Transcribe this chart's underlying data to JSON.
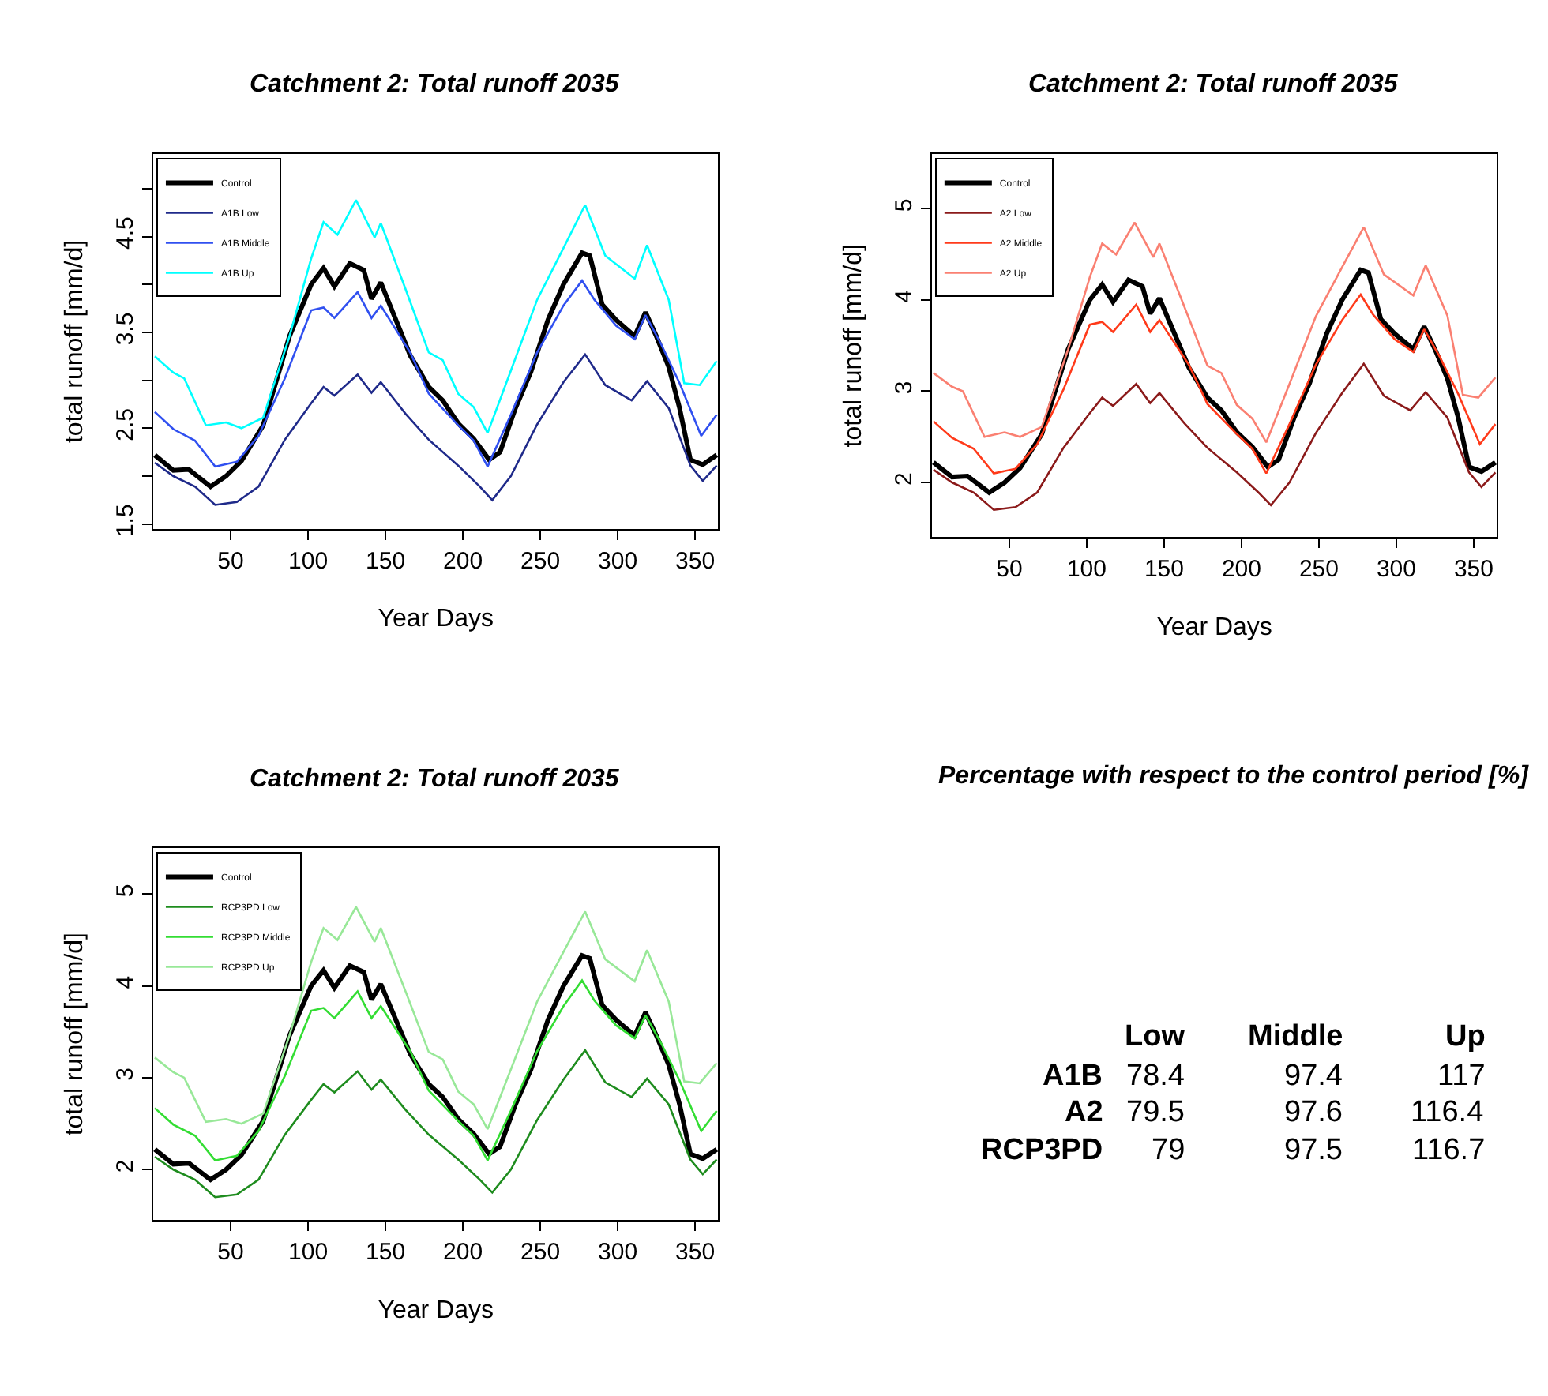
{
  "chart_data": [
    {
      "type": "line",
      "title": "Catchment 2: Total runoff 2035",
      "xlabel": "Year Days",
      "ylabel": "total runoff [mm/d]",
      "xlim": [
        0,
        365
      ],
      "xticks": [
        50,
        100,
        150,
        200,
        250,
        300,
        350
      ],
      "ylim": [
        1.45,
        5.36
      ],
      "yticks": [
        1.5,
        {
          "value": 2,
          "label": null
        },
        2.5,
        {
          "value": 3,
          "label": null
        },
        3.5,
        {
          "value": 4,
          "label": null
        },
        4.5,
        {
          "value": 5,
          "label": null
        }
      ],
      "legend": "top left",
      "series": [
        {
          "name": "Control",
          "color": "#000000",
          "x": [
            1,
            13,
            23,
            37,
            47,
            57,
            71,
            88,
            102,
            110,
            117,
            127,
            136,
            141,
            147,
            154,
            166,
            178,
            187,
            197,
            207,
            217,
            224,
            234,
            244,
            255,
            265,
            277,
            282,
            290,
            299,
            311,
            318,
            325,
            333,
            340,
            347,
            355,
            364
          ],
          "values": [
            2.22,
            2.06,
            2.07,
            1.89,
            2.0,
            2.16,
            2.53,
            3.46,
            4.0,
            4.17,
            3.98,
            4.22,
            4.15,
            3.85,
            4.02,
            3.74,
            3.26,
            2.93,
            2.79,
            2.55,
            2.39,
            2.17,
            2.25,
            2.71,
            3.09,
            3.63,
            4.0,
            4.33,
            4.3,
            3.79,
            3.63,
            3.46,
            3.71,
            3.46,
            3.14,
            2.71,
            2.17,
            2.12,
            2.22
          ]
        },
        {
          "name": "A1B Low",
          "color": "#1f2a8a",
          "x": [
            1,
            13,
            27,
            40,
            54,
            68,
            85,
            102,
            110,
            117,
            132,
            141,
            147,
            163,
            178,
            197,
            211,
            219,
            231,
            248,
            265,
            279,
            292,
            309,
            319,
            333,
            347,
            355,
            364
          ],
          "values": [
            2.14,
            2.0,
            1.89,
            1.7,
            1.73,
            1.89,
            2.38,
            2.76,
            2.93,
            2.84,
            3.06,
            2.87,
            2.98,
            2.65,
            2.38,
            2.11,
            1.89,
            1.75,
            2.0,
            2.54,
            2.98,
            3.27,
            2.95,
            2.79,
            2.99,
            2.71,
            2.11,
            1.95,
            2.11
          ]
        },
        {
          "name": "A1B Middle",
          "color": "#3050f0",
          "x": [
            1,
            13,
            27,
            40,
            54,
            68,
            85,
            102,
            110,
            117,
            132,
            141,
            147,
            166,
            178,
            197,
            207,
            216,
            231,
            248,
            265,
            277,
            285,
            299,
            311,
            318,
            328,
            340,
            354,
            364
          ],
          "values": [
            2.67,
            2.49,
            2.37,
            2.1,
            2.15,
            2.42,
            3.02,
            3.73,
            3.76,
            3.65,
            3.92,
            3.65,
            3.78,
            3.29,
            2.86,
            2.53,
            2.37,
            2.1,
            2.64,
            3.29,
            3.78,
            4.04,
            3.84,
            3.57,
            3.43,
            3.68,
            3.38,
            2.97,
            2.42,
            2.64
          ]
        },
        {
          "name": "A1B Up",
          "color": "#00ffff",
          "x": [
            1,
            13,
            20,
            34,
            47,
            57,
            71,
            88,
            102,
            110,
            119,
            131,
            143,
            147,
            163,
            178,
            187,
            197,
            207,
            216,
            231,
            248,
            265,
            279,
            292,
            311,
            319,
            333,
            343,
            353,
            364
          ],
          "values": [
            3.25,
            3.08,
            3.02,
            2.53,
            2.56,
            2.5,
            2.61,
            3.46,
            4.27,
            4.65,
            4.52,
            4.88,
            4.49,
            4.64,
            3.95,
            3.29,
            3.21,
            2.86,
            2.72,
            2.45,
            3.1,
            3.84,
            4.38,
            4.83,
            4.3,
            4.06,
            4.41,
            3.84,
            2.97,
            2.95,
            3.2
          ]
        }
      ]
    },
    {
      "type": "line",
      "title": "Catchment 2: Total runoff 2035",
      "xlabel": "Year Days",
      "ylabel": "total runoff [mm/d]",
      "xlim": [
        0,
        365
      ],
      "xticks": [
        50,
        100,
        150,
        200,
        250,
        300,
        350
      ],
      "ylim": [
        1.4,
        5.6
      ],
      "yticks": [
        2,
        3,
        4,
        5
      ],
      "legend": "top left",
      "series": [
        {
          "name": "Control",
          "color": "#000000",
          "x": [
            1,
            13,
            23,
            37,
            47,
            57,
            71,
            88,
            102,
            110,
            117,
            127,
            136,
            141,
            147,
            154,
            166,
            178,
            187,
            197,
            207,
            217,
            224,
            234,
            244,
            255,
            265,
            277,
            282,
            290,
            299,
            311,
            318,
            325,
            333,
            340,
            347,
            355,
            364
          ],
          "values": [
            2.22,
            2.06,
            2.07,
            1.89,
            2.0,
            2.16,
            2.53,
            3.46,
            4.0,
            4.17,
            3.98,
            4.22,
            4.15,
            3.85,
            4.02,
            3.74,
            3.26,
            2.93,
            2.79,
            2.55,
            2.39,
            2.17,
            2.25,
            2.71,
            3.09,
            3.63,
            4.0,
            4.33,
            4.3,
            3.79,
            3.63,
            3.46,
            3.71,
            3.46,
            3.14,
            2.71,
            2.17,
            2.12,
            2.22
          ]
        },
        {
          "name": "A2 Low",
          "color": "#8b1a1a",
          "x": [
            1,
            13,
            27,
            40,
            54,
            68,
            85,
            102,
            110,
            117,
            132,
            141,
            147,
            163,
            178,
            197,
            211,
            219,
            231,
            248,
            265,
            279,
            292,
            309,
            319,
            333,
            347,
            355,
            364
          ],
          "values": [
            2.14,
            2.0,
            1.89,
            1.7,
            1.73,
            1.89,
            2.38,
            2.76,
            2.93,
            2.84,
            3.08,
            2.87,
            2.98,
            2.65,
            2.38,
            2.11,
            1.89,
            1.75,
            2.0,
            2.54,
            2.98,
            3.3,
            2.95,
            2.79,
            2.99,
            2.71,
            2.11,
            1.95,
            2.11
          ]
        },
        {
          "name": "A2 Middle",
          "color": "#ff3a1a",
          "x": [
            1,
            13,
            27,
            40,
            54,
            68,
            85,
            102,
            110,
            117,
            132,
            141,
            147,
            166,
            178,
            197,
            207,
            216,
            231,
            248,
            265,
            277,
            285,
            299,
            311,
            318,
            328,
            340,
            354,
            364
          ],
          "values": [
            2.67,
            2.49,
            2.37,
            2.1,
            2.15,
            2.42,
            3.02,
            3.73,
            3.76,
            3.65,
            3.95,
            3.65,
            3.78,
            3.29,
            2.86,
            2.53,
            2.37,
            2.1,
            2.64,
            3.29,
            3.78,
            4.06,
            3.84,
            3.57,
            3.43,
            3.68,
            3.38,
            2.97,
            2.42,
            2.64
          ]
        },
        {
          "name": "A2 Up",
          "color": "#fa8072",
          "x": [
            1,
            13,
            20,
            34,
            47,
            57,
            71,
            88,
            102,
            110,
            119,
            131,
            143,
            147,
            163,
            178,
            187,
            197,
            207,
            216,
            231,
            248,
            265,
            279,
            292,
            311,
            319,
            333,
            343,
            353,
            364
          ],
          "values": [
            3.2,
            3.05,
            3.0,
            2.5,
            2.55,
            2.5,
            2.61,
            3.46,
            4.25,
            4.62,
            4.5,
            4.85,
            4.47,
            4.62,
            3.93,
            3.28,
            3.2,
            2.85,
            2.7,
            2.44,
            3.08,
            3.82,
            4.36,
            4.8,
            4.28,
            4.05,
            4.38,
            3.83,
            2.96,
            2.93,
            3.15
          ]
        }
      ]
    },
    {
      "type": "line",
      "title": "Catchment 2: Total runoff 2035",
      "xlabel": "Year Days",
      "ylabel": "total runoff [mm/d]",
      "xlim": [
        0,
        365
      ],
      "xticks": [
        50,
        100,
        150,
        200,
        250,
        300,
        350
      ],
      "ylim": [
        1.45,
        5.5
      ],
      "yticks": [
        2,
        3,
        4,
        5
      ],
      "legend": "top left",
      "series": [
        {
          "name": "Control",
          "color": "#000000",
          "x": [
            1,
            13,
            23,
            37,
            47,
            57,
            71,
            88,
            102,
            110,
            117,
            127,
            136,
            141,
            147,
            154,
            166,
            178,
            187,
            197,
            207,
            217,
            224,
            234,
            244,
            255,
            265,
            277,
            282,
            290,
            299,
            311,
            318,
            325,
            333,
            340,
            347,
            355,
            364
          ],
          "values": [
            2.22,
            2.06,
            2.07,
            1.89,
            2.0,
            2.16,
            2.53,
            3.46,
            4.0,
            4.17,
            3.98,
            4.22,
            4.15,
            3.85,
            4.02,
            3.74,
            3.26,
            2.93,
            2.79,
            2.55,
            2.39,
            2.17,
            2.25,
            2.71,
            3.09,
            3.63,
            4.0,
            4.33,
            4.3,
            3.79,
            3.63,
            3.46,
            3.71,
            3.46,
            3.14,
            2.71,
            2.17,
            2.12,
            2.22
          ]
        },
        {
          "name": "RCP3PD Low",
          "color": "#1e8c1e",
          "x": [
            1,
            13,
            27,
            40,
            54,
            68,
            85,
            102,
            110,
            117,
            132,
            141,
            147,
            163,
            178,
            197,
            211,
            219,
            231,
            248,
            265,
            279,
            292,
            309,
            319,
            333,
            347,
            355,
            364
          ],
          "values": [
            2.14,
            2.0,
            1.89,
            1.7,
            1.73,
            1.89,
            2.38,
            2.76,
            2.93,
            2.84,
            3.07,
            2.87,
            2.98,
            2.65,
            2.38,
            2.11,
            1.89,
            1.75,
            2.0,
            2.54,
            2.98,
            3.3,
            2.95,
            2.79,
            2.99,
            2.71,
            2.11,
            1.95,
            2.11
          ]
        },
        {
          "name": "RCP3PD Middle",
          "color": "#33dd33",
          "x": [
            1,
            13,
            27,
            40,
            54,
            68,
            85,
            102,
            110,
            117,
            132,
            141,
            147,
            166,
            178,
            197,
            207,
            216,
            231,
            248,
            265,
            277,
            285,
            299,
            311,
            318,
            328,
            340,
            354,
            364
          ],
          "values": [
            2.67,
            2.49,
            2.37,
            2.1,
            2.15,
            2.42,
            3.02,
            3.73,
            3.76,
            3.65,
            3.94,
            3.65,
            3.78,
            3.29,
            2.86,
            2.53,
            2.37,
            2.1,
            2.64,
            3.29,
            3.78,
            4.06,
            3.84,
            3.57,
            3.43,
            3.68,
            3.38,
            2.97,
            2.42,
            2.64
          ]
        },
        {
          "name": "RCP3PD Up",
          "color": "#98e898",
          "x": [
            1,
            13,
            20,
            34,
            47,
            57,
            71,
            88,
            102,
            110,
            119,
            131,
            143,
            147,
            163,
            178,
            187,
            197,
            207,
            216,
            231,
            248,
            265,
            279,
            292,
            311,
            319,
            333,
            343,
            353,
            364
          ],
          "values": [
            3.22,
            3.06,
            3.0,
            2.52,
            2.55,
            2.5,
            2.61,
            3.46,
            4.26,
            4.63,
            4.5,
            4.86,
            4.48,
            4.63,
            3.94,
            3.28,
            3.2,
            2.85,
            2.71,
            2.44,
            3.09,
            3.83,
            4.37,
            4.81,
            4.29,
            4.05,
            4.39,
            3.83,
            2.96,
            2.94,
            3.16
          ]
        }
      ]
    },
    {
      "type": "other",
      "title": "Percentage with respect to the control period [%]",
      "annotations": [
        "Low",
        "Middle",
        "Up",
        "A1B",
        "78.4",
        "97.4",
        "117",
        "A2",
        "79.5",
        "97.6",
        "116.4",
        "RCP3PD",
        "79",
        "97.5",
        "116.7"
      ]
    }
  ]
}
